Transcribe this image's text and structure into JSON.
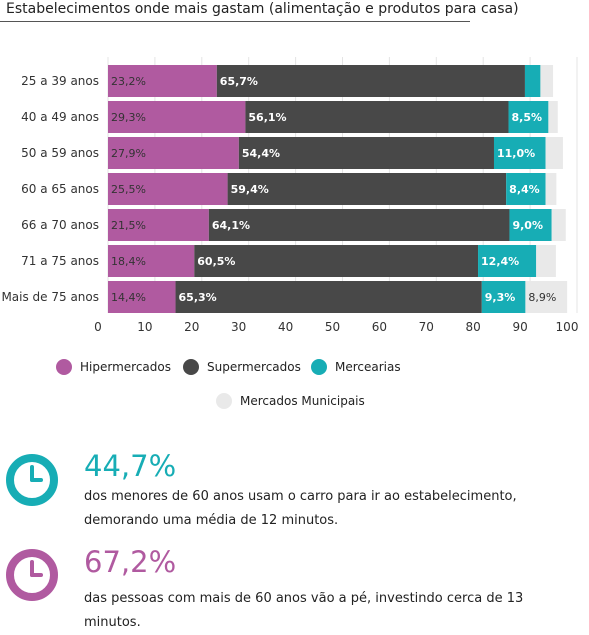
{
  "title": "Estabelecimentos onde mais gastam (alimentação e produtos para casa)",
  "colors": {
    "hipermercados": "#b05aa0",
    "supermercados": "#484848",
    "mercearias": "#17adb5",
    "mercados_municipais": "#e9e9e9",
    "teal_stat": "#17adb5",
    "purple_stat": "#b05aa0"
  },
  "chart_data": {
    "type": "bar",
    "orientation": "horizontal",
    "stacked": true,
    "categories": [
      "25 a 39 anos",
      "40 a 49 anos",
      "50 a 59 anos",
      "60 a 65 anos",
      "66 a 70 anos",
      "71 a 75 anos",
      "Mais de 75 anos"
    ],
    "series": [
      {
        "name": "Hipermercados",
        "values": [
          23.2,
          29.3,
          27.9,
          25.5,
          21.5,
          18.4,
          14.4
        ],
        "labels": [
          "23,2%",
          "29,3%",
          "27,9%",
          "25,5%",
          "21,5%",
          "18,4%",
          "14,4%"
        ]
      },
      {
        "name": "Supermercados",
        "values": [
          65.7,
          56.1,
          54.4,
          59.4,
          64.1,
          60.5,
          65.3
        ],
        "labels": [
          "65,7%",
          "56,1%",
          "54,4%",
          "59,4%",
          "64,1%",
          "60,5%",
          "65,3%"
        ]
      },
      {
        "name": "Mercearias",
        "values": [
          3.3,
          8.5,
          11.0,
          8.4,
          9.0,
          12.4,
          9.3
        ],
        "labels": [
          "",
          "8,5%",
          "11,0%",
          "8,4%",
          "9,0%",
          "12,4%",
          "9,3%"
        ]
      },
      {
        "name": "Mercados Municipais",
        "values": [
          2.7,
          2.0,
          3.7,
          2.3,
          3.0,
          4.2,
          8.9
        ],
        "labels": [
          "",
          "",
          "",
          "",
          "",
          "",
          "8,9%"
        ]
      }
    ],
    "xlim": [
      0,
      100
    ],
    "xticks": [
      "0",
      "10",
      "20",
      "30",
      "40",
      "50",
      "60",
      "70",
      "80",
      "90",
      "100"
    ],
    "grid": true,
    "legend_position": "bottom"
  },
  "legend": {
    "hipermercados": "Hipermercados",
    "supermercados": "Supermercados",
    "mercearias": "Mercearias",
    "mercados_municipais": "Mercados Municipais"
  },
  "stats": [
    {
      "value": "44,7%",
      "text": "dos menores de 60 anos usam o carro para ir ao estabelecimento, demorando uma média de 12 minutos.",
      "icon": "clock-icon"
    },
    {
      "value": "67,2%",
      "text": "das pessoas com mais de 60 anos vão a pé, investindo cerca de 13 minutos.",
      "icon": "clock-icon"
    }
  ]
}
